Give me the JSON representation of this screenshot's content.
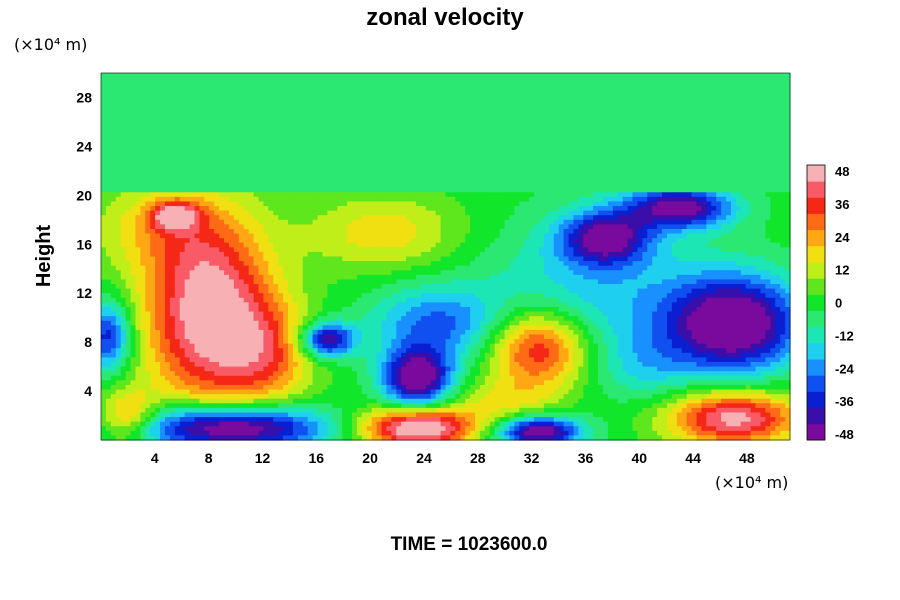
{
  "chart_data": {
    "type": "heatmap",
    "title": "zonal velocity",
    "ylabel": "Height",
    "xunit": "(×10⁴ m)",
    "yunit": "(×10⁴ m)",
    "footer": "TIME = 1023600.0",
    "xlim": [
      0,
      51.2
    ],
    "ylim": [
      0,
      30
    ],
    "xticks": [
      "4",
      "8",
      "12",
      "16",
      "20",
      "24",
      "28",
      "32",
      "36",
      "40",
      "44",
      "48"
    ],
    "yticks": [
      "4",
      "8",
      "12",
      "16",
      "20",
      "24",
      "28"
    ],
    "colorbar": {
      "min": -48,
      "max": 48,
      "ticks": [
        "48",
        "36",
        "24",
        "12",
        "0",
        "-12",
        "-24",
        "-36",
        "-48"
      ]
    },
    "field": {
      "upper_layer_value": -6,
      "upper_layer_bottom": 20.2,
      "base_value": 0,
      "features": [
        {
          "x": 8.0,
          "y": 10.5,
          "sx": 3.4,
          "sy": 5.5,
          "value": 50
        },
        {
          "x": 12.5,
          "y": 7.0,
          "sx": 2.4,
          "sy": 3.0,
          "value": 22
        },
        {
          "x": 9.5,
          "y": 1.0,
          "sx": 5.0,
          "sy": 1.3,
          "value": -58
        },
        {
          "x": 2.0,
          "y": 1.8,
          "sx": 1.5,
          "sy": 1.5,
          "value": 28
        },
        {
          "x": 23.5,
          "y": 1.0,
          "sx": 3.0,
          "sy": 1.2,
          "value": 55
        },
        {
          "x": 32.5,
          "y": 7.5,
          "sx": 2.7,
          "sy": 2.3,
          "value": 42
        },
        {
          "x": 32.5,
          "y": 0.7,
          "sx": 2.2,
          "sy": 0.9,
          "value": -52
        },
        {
          "x": 47.0,
          "y": 1.8,
          "sx": 3.5,
          "sy": 1.6,
          "value": 46
        },
        {
          "x": 47.0,
          "y": 9.5,
          "sx": 3.5,
          "sy": 2.8,
          "value": -55
        },
        {
          "x": 23.5,
          "y": 5.0,
          "sx": 1.8,
          "sy": 1.7,
          "value": -52
        },
        {
          "x": 16.8,
          "y": 8.2,
          "sx": 1.4,
          "sy": 1.0,
          "value": -44
        },
        {
          "x": 25.0,
          "y": 9.5,
          "sx": 3.5,
          "sy": 2.2,
          "value": -26
        },
        {
          "x": 37.5,
          "y": 16.5,
          "sx": 2.3,
          "sy": 1.5,
          "value": -42
        },
        {
          "x": 43.0,
          "y": 19.0,
          "sx": 2.8,
          "sy": 1.2,
          "value": -46
        },
        {
          "x": 36.5,
          "y": 12.0,
          "sx": 5.5,
          "sy": 4.5,
          "value": -18
        },
        {
          "x": 21.0,
          "y": 17.0,
          "sx": 4.0,
          "sy": 2.2,
          "value": 18
        },
        {
          "x": 4.0,
          "y": 17.5,
          "sx": 3.5,
          "sy": 2.5,
          "value": 14
        },
        {
          "x": 5.5,
          "y": 18.3,
          "sx": 1.2,
          "sy": 0.8,
          "value": 34
        },
        {
          "x": 0.5,
          "y": 8.5,
          "sx": 1.2,
          "sy": 2.0,
          "value": -36
        },
        {
          "x": 30.0,
          "y": 3.0,
          "sx": 3.0,
          "sy": 1.5,
          "value": 14
        },
        {
          "x": 40.5,
          "y": 6.0,
          "sx": 2.5,
          "sy": 2.0,
          "value": -10
        }
      ]
    }
  }
}
